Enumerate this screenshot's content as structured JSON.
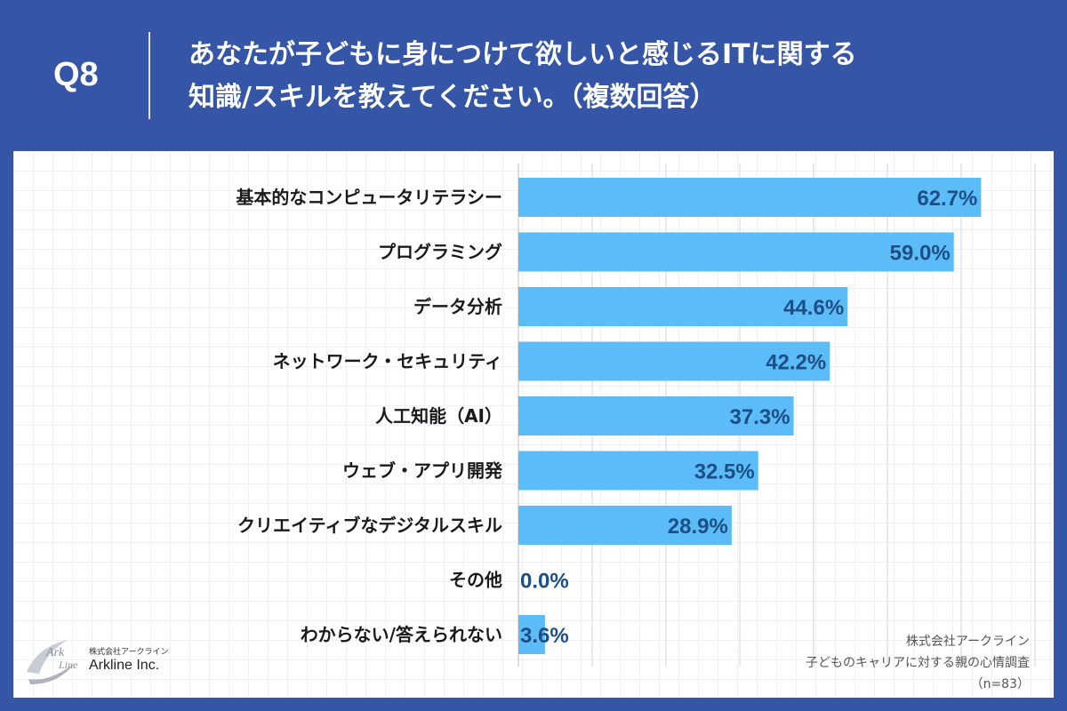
{
  "header": {
    "q_number": "Q8",
    "question_line1": "あなたが子どもに身につけて欲しいと感じるITに関する",
    "question_line2": "知識/スキルを教えてください。（複数回答）"
  },
  "chart_data": {
    "type": "bar",
    "orientation": "horizontal",
    "categories": [
      "基本的なコンピュータリテラシー",
      "プログラミング",
      "データ分析",
      "ネットワーク・セキュリティ",
      "人工知能（AI）",
      "ウェブ・アプリ開発",
      "クリエイティブなデジタルスキル",
      "その他",
      "わからない/答えられない"
    ],
    "values": [
      62.7,
      59.0,
      44.6,
      42.2,
      37.3,
      32.5,
      28.9,
      0.0,
      3.6
    ],
    "value_labels": [
      "62.7%",
      "59.0%",
      "44.6%",
      "42.2%",
      "37.3%",
      "32.5%",
      "28.9%",
      "0.0%",
      "3.6%"
    ],
    "xlim": [
      0,
      70
    ],
    "grid": true,
    "bar_color": "#5bbcf8",
    "label_color": "#1d4e85"
  },
  "colors": {
    "background": "#3556a6",
    "card": "#ffffff",
    "bar": "#5bbcf8"
  },
  "logo": {
    "company_jp": "株式会社アークライン",
    "company_en": "Arkline Inc."
  },
  "source": {
    "company": "株式会社アークライン",
    "survey": "子どものキャリアに対する親の心情調査",
    "sample": "（n=83）"
  }
}
